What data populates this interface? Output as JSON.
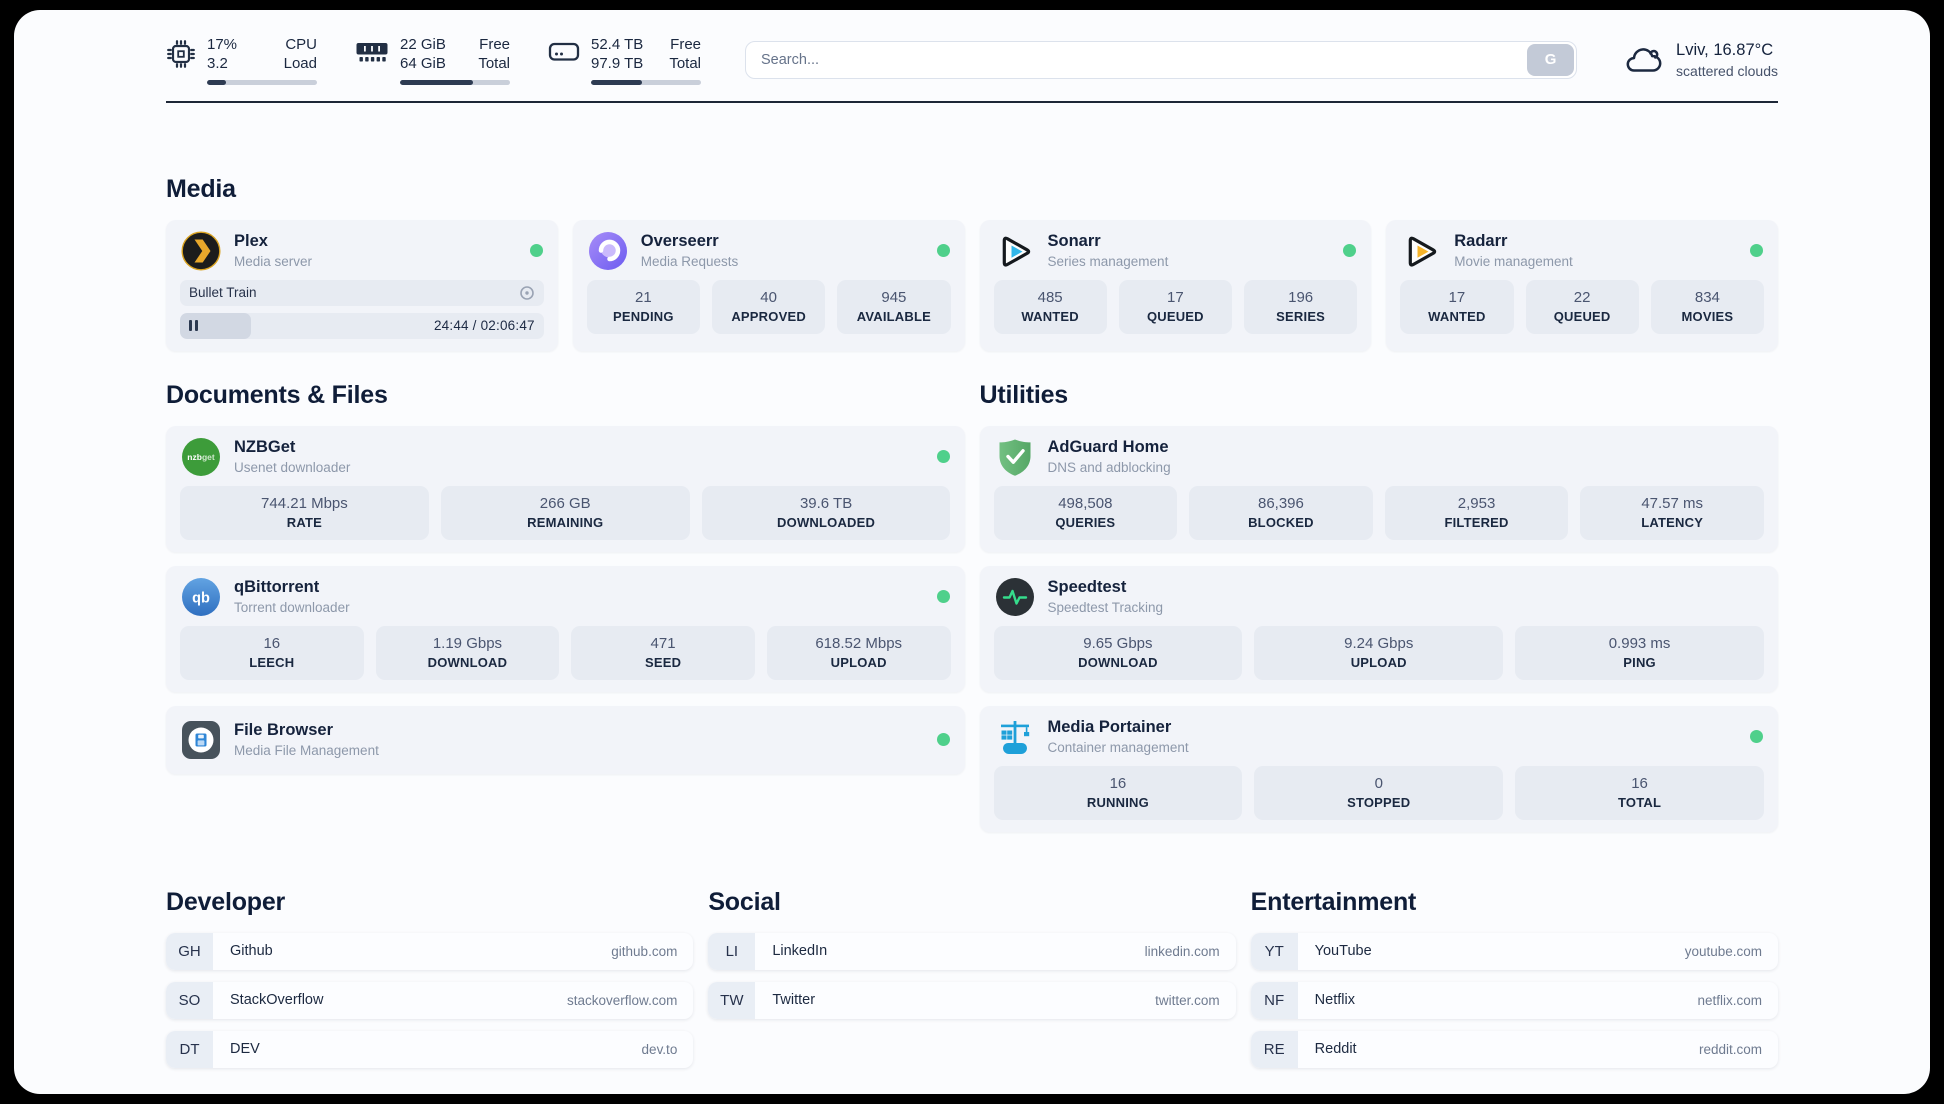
{
  "sections": {
    "media": "Media",
    "documents": "Documents & Files",
    "utilities": "Utilities",
    "developer": "Developer",
    "social": "Social",
    "entertainment": "Entertainment"
  },
  "topbar": {
    "cpu": {
      "value": "17%",
      "sub": "3.2",
      "label_top": "CPU",
      "label_bottom": "Load",
      "progress_pct": 17
    },
    "memory": {
      "value": "22 GiB",
      "sub": "64 GiB",
      "label_top": "Free",
      "label_bottom": "Total",
      "progress_pct": 66
    },
    "disk": {
      "value": "52.4 TB",
      "sub": "97.9 TB",
      "label_top": "Free",
      "label_bottom": "Total",
      "progress_pct": 46
    },
    "search": {
      "placeholder": "Search...",
      "button_label": "G"
    },
    "weather": {
      "location": "Lviv, 16.87°C",
      "condition": "scattered clouds"
    }
  },
  "media": {
    "plex": {
      "title": "Plex",
      "subtitle": "Media server",
      "now_playing": "Bullet Train",
      "time": "24:44 / 02:06:47",
      "progress_pct": 19.5
    },
    "overseerr": {
      "title": "Overseerr",
      "subtitle": "Media Requests",
      "stats": [
        {
          "value": "21",
          "label": "PENDING"
        },
        {
          "value": "40",
          "label": "APPROVED"
        },
        {
          "value": "945",
          "label": "AVAILABLE"
        }
      ]
    },
    "sonarr": {
      "title": "Sonarr",
      "subtitle": "Series management",
      "stats": [
        {
          "value": "485",
          "label": "WANTED"
        },
        {
          "value": "17",
          "label": "QUEUED"
        },
        {
          "value": "196",
          "label": "SERIES"
        }
      ]
    },
    "radarr": {
      "title": "Radarr",
      "subtitle": "Movie management",
      "stats": [
        {
          "value": "17",
          "label": "WANTED"
        },
        {
          "value": "22",
          "label": "QUEUED"
        },
        {
          "value": "834",
          "label": "MOVIES"
        }
      ]
    }
  },
  "documents": {
    "nzbget": {
      "title": "NZBGet",
      "subtitle": "Usenet downloader",
      "stats": [
        {
          "value": "744.21 Mbps",
          "label": "RATE"
        },
        {
          "value": "266 GB",
          "label": "REMAINING"
        },
        {
          "value": "39.6 TB",
          "label": "DOWNLOADED"
        }
      ]
    },
    "qbittorrent": {
      "title": "qBittorrent",
      "subtitle": "Torrent downloader",
      "stats": [
        {
          "value": "16",
          "label": "LEECH"
        },
        {
          "value": "1.19 Gbps",
          "label": "DOWNLOAD"
        },
        {
          "value": "471",
          "label": "SEED"
        },
        {
          "value": "618.52 Mbps",
          "label": "UPLOAD"
        }
      ]
    },
    "filebrowser": {
      "title": "File Browser",
      "subtitle": "Media File Management"
    }
  },
  "utilities": {
    "adguard": {
      "title": "AdGuard Home",
      "subtitle": "DNS and adblocking",
      "stats": [
        {
          "value": "498,508",
          "label": "QUERIES"
        },
        {
          "value": "86,396",
          "label": "BLOCKED"
        },
        {
          "value": "2,953",
          "label": "FILTERED"
        },
        {
          "value": "47.57 ms",
          "label": "LATENCY"
        }
      ]
    },
    "speedtest": {
      "title": "Speedtest",
      "subtitle": "Speedtest Tracking",
      "stats": [
        {
          "value": "9.65 Gbps",
          "label": "DOWNLOAD"
        },
        {
          "value": "9.24 Gbps",
          "label": "UPLOAD"
        },
        {
          "value": "0.993 ms",
          "label": "PING"
        }
      ]
    },
    "portainer": {
      "title": "Media Portainer",
      "subtitle": "Container management",
      "stats": [
        {
          "value": "16",
          "label": "RUNNING"
        },
        {
          "value": "0",
          "label": "STOPPED"
        },
        {
          "value": "16",
          "label": "TOTAL"
        }
      ]
    }
  },
  "bookmarks": {
    "developer": [
      {
        "abbr": "GH",
        "name": "Github",
        "url": "github.com"
      },
      {
        "abbr": "SO",
        "name": "StackOverflow",
        "url": "stackoverflow.com"
      },
      {
        "abbr": "DT",
        "name": "DEV",
        "url": "dev.to"
      }
    ],
    "social": [
      {
        "abbr": "LI",
        "name": "LinkedIn",
        "url": "linkedin.com"
      },
      {
        "abbr": "TW",
        "name": "Twitter",
        "url": "twitter.com"
      }
    ],
    "entertainment": [
      {
        "abbr": "YT",
        "name": "YouTube",
        "url": "youtube.com"
      },
      {
        "abbr": "NF",
        "name": "Netflix",
        "url": "netflix.com"
      },
      {
        "abbr": "RE",
        "name": "Reddit",
        "url": "reddit.com"
      }
    ]
  },
  "colors": {
    "status_online": "#4fd08b",
    "accent_dark": "#1d2737"
  }
}
